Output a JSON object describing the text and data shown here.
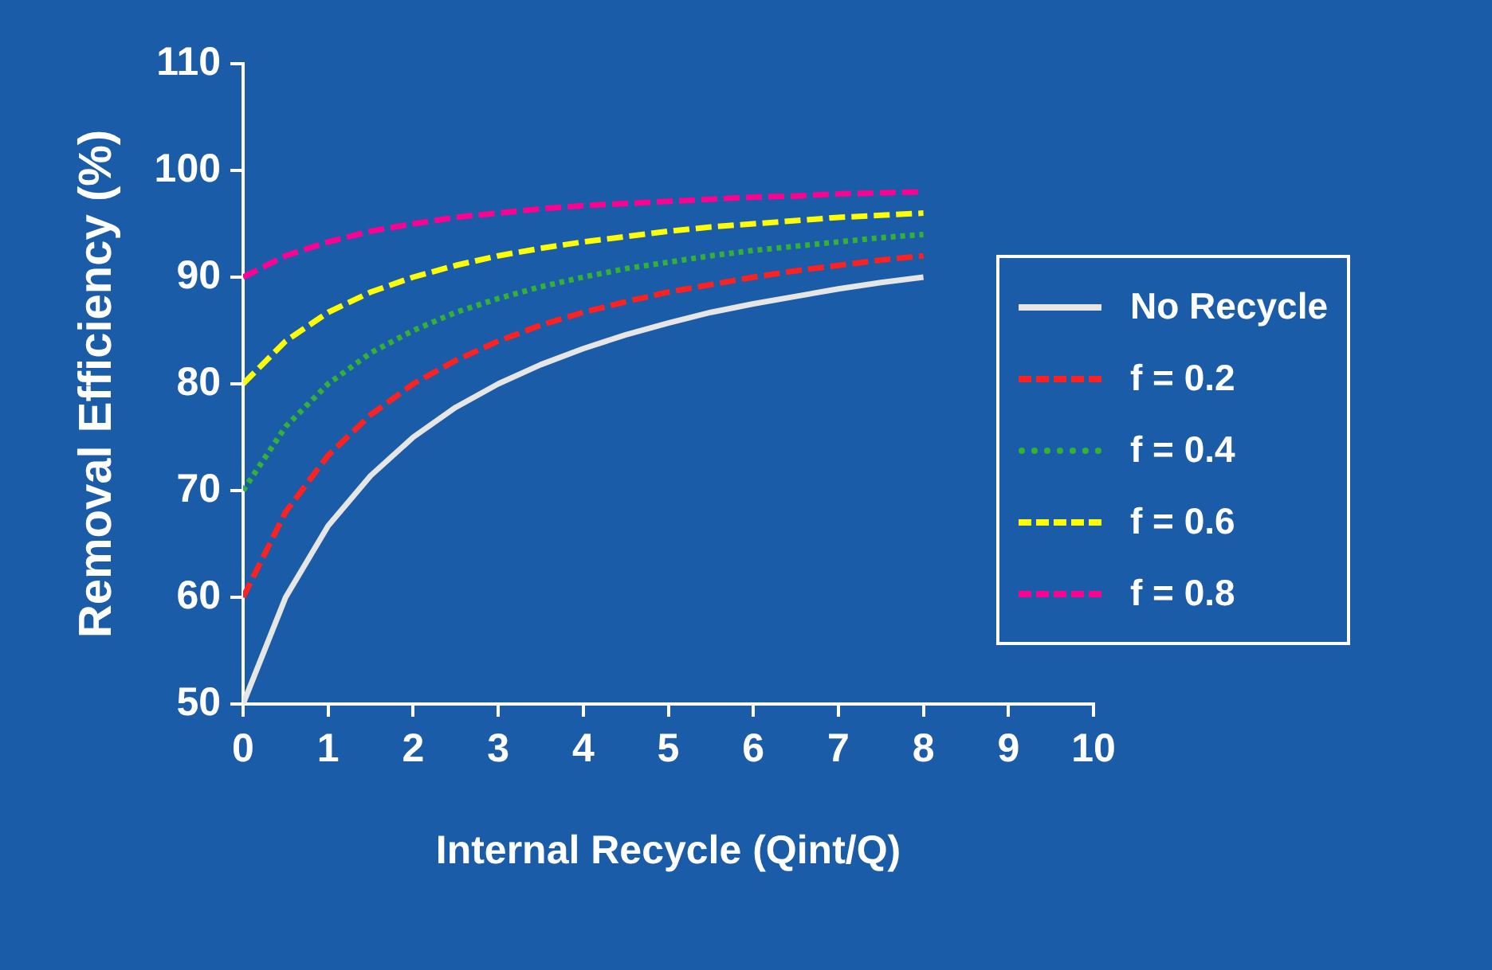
{
  "chart_data": {
    "type": "line",
    "xlabel": "Internal Recycle (Qint/Q)",
    "ylabel": "Removal Efficiency (%)",
    "x": [
      0,
      0.5,
      1,
      1.5,
      2,
      2.5,
      3,
      3.5,
      4,
      4.5,
      5,
      5.5,
      6,
      6.5,
      7,
      7.5,
      8
    ],
    "xlim": [
      0,
      10
    ],
    "xticks": [
      0,
      1,
      2,
      3,
      4,
      5,
      6,
      7,
      8,
      9,
      10
    ],
    "ylim": [
      50,
      110
    ],
    "yticks": [
      50,
      60,
      70,
      80,
      90,
      100,
      110
    ],
    "grid": false,
    "legend": "right",
    "marker": "none",
    "series": [
      {
        "name": "No Recycle",
        "color": "#e6e6e6",
        "line_style": "solid",
        "values": [
          50,
          60,
          66.7,
          71.4,
          75,
          77.8,
          80,
          81.8,
          83.3,
          84.6,
          85.7,
          86.7,
          87.5,
          88.2,
          88.9,
          89.5,
          90
        ]
      },
      {
        "name": "f = 0.2",
        "color": "#ff2020",
        "line_style": "dashed",
        "values": [
          60,
          68,
          73.3,
          77.1,
          80,
          82.2,
          84,
          85.5,
          86.7,
          87.7,
          88.6,
          89.3,
          90,
          90.6,
          91.1,
          91.6,
          92
        ]
      },
      {
        "name": "f = 0.4",
        "color": "#33b233",
        "line_style": "dotted",
        "values": [
          70,
          76,
          80,
          82.9,
          85,
          86.7,
          88,
          89.1,
          90,
          90.8,
          91.4,
          92,
          92.5,
          92.9,
          93.3,
          93.7,
          94
        ]
      },
      {
        "name": "f = 0.6",
        "color": "#ffff00",
        "line_style": "dashed",
        "values": [
          80,
          84,
          86.7,
          88.6,
          90,
          91.1,
          92,
          92.7,
          93.3,
          93.8,
          94.3,
          94.7,
          95,
          95.3,
          95.6,
          95.8,
          96
        ]
      },
      {
        "name": "f = 0.8",
        "color": "#ff0090",
        "line_style": "dashed",
        "values": [
          90,
          92,
          93.3,
          94.3,
          95,
          95.6,
          96,
          96.4,
          96.7,
          96.9,
          97.1,
          97.3,
          97.5,
          97.6,
          97.8,
          97.9,
          98
        ]
      }
    ]
  }
}
